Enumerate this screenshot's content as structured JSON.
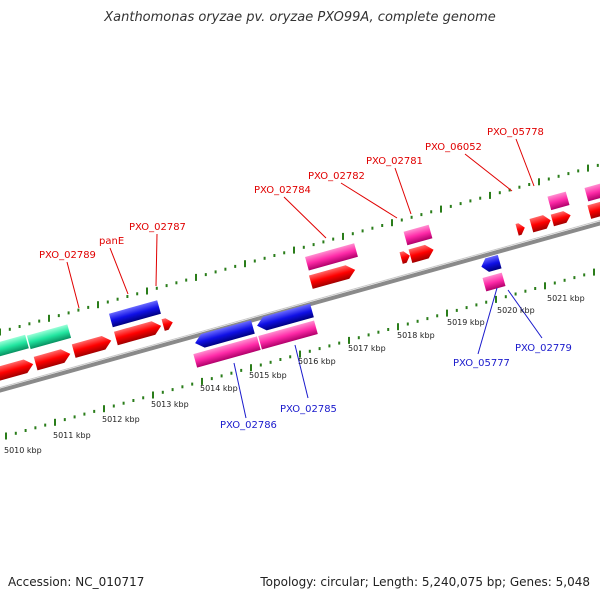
{
  "title": "Xanthomonas oryzae pv. oryzae PXO99A, complete genome",
  "footer": {
    "accession": "Accession: NC_010717",
    "summary": "Topology: circular; Length: 5,240,075 bp; Genes: 5,048"
  },
  "colors": {
    "backbone": "#8c8c8c",
    "ruler": "#2a7d1a",
    "forward_label": "#e00000",
    "reverse_label": "#1a1acc",
    "gene_red": "#ff0000",
    "gene_blue": "#1010e6",
    "gene_pink": "#ff2aa8",
    "gene_green": "#22e6a0"
  },
  "kbp_ticks": [
    "5010 kbp",
    "5011 kbp",
    "5012 kbp",
    "5013 kbp",
    "5014 kbp",
    "5015 kbp",
    "5016 kbp",
    "5017 kbp",
    "5018 kbp",
    "5019 kbp",
    "5020 kbp",
    "5021 kbp"
  ],
  "forward_labels": [
    "PXO_02789",
    "panE",
    "PXO_02787",
    "PXO_02784",
    "PXO_02782",
    "PXO_02781",
    "PXO_06052",
    "PXO_05778"
  ],
  "reverse_labels": [
    "PXO_02786",
    "PXO_02785",
    "PXO_05777",
    "PXO_02779"
  ]
}
